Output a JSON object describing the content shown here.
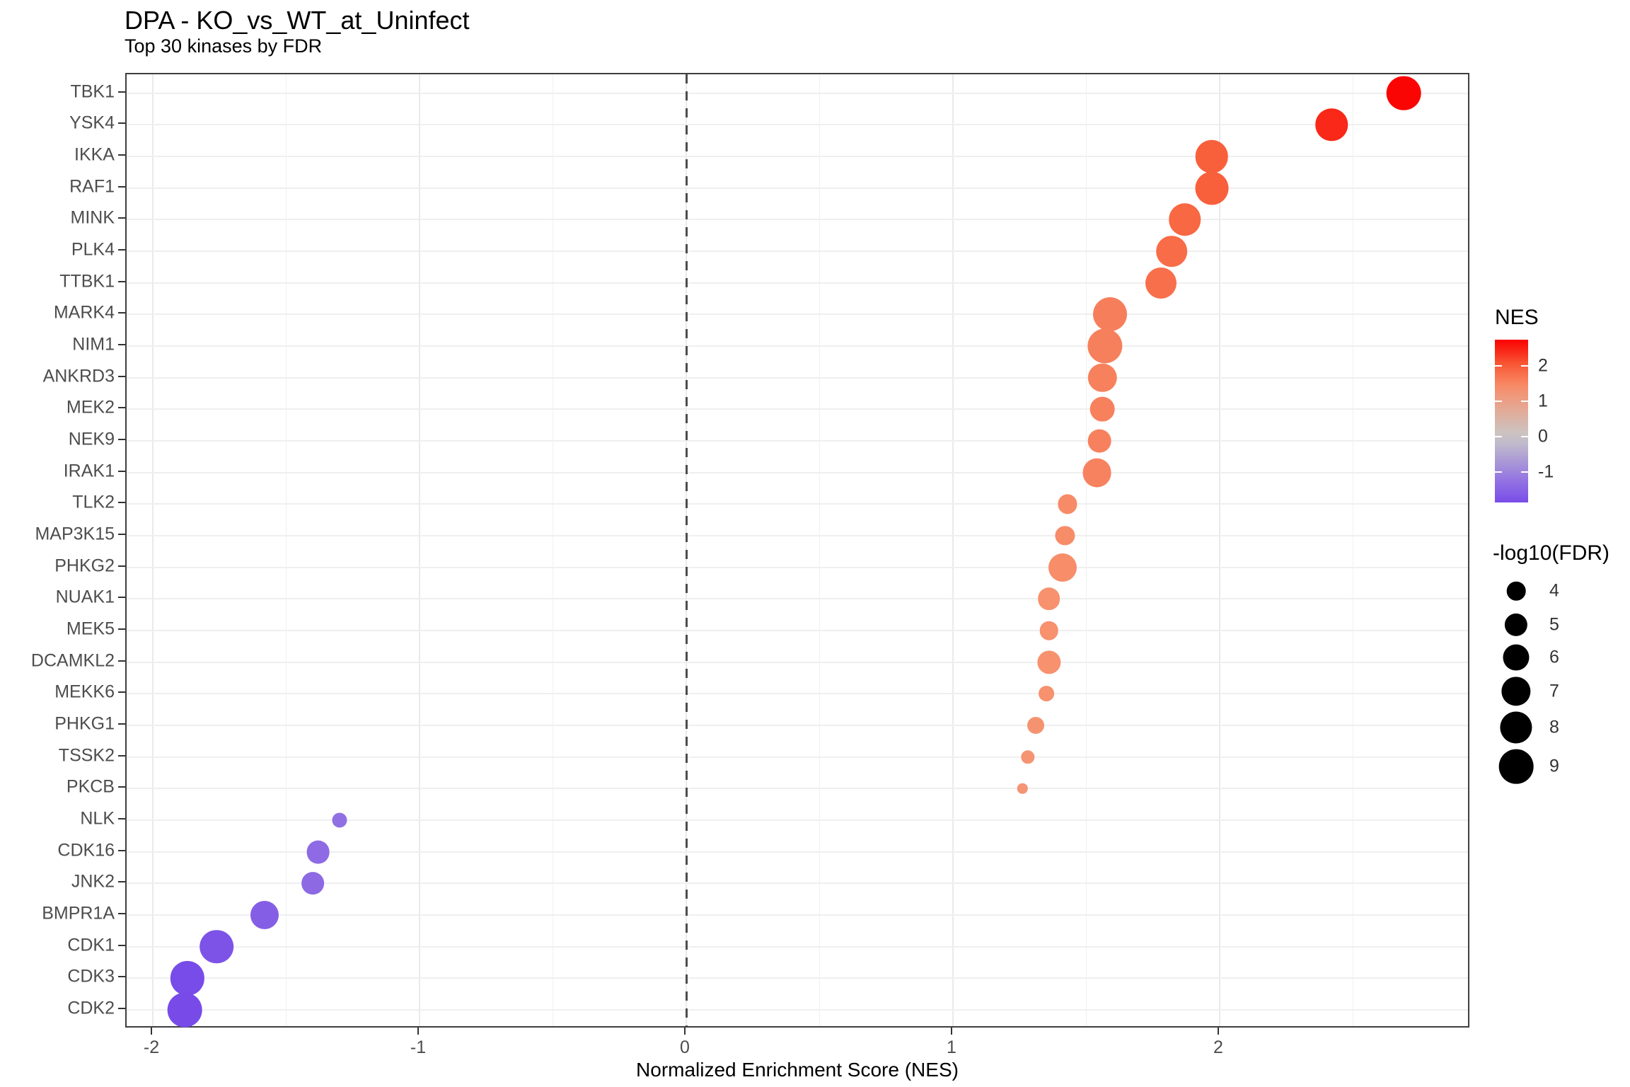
{
  "chart_data": {
    "type": "scatter",
    "title": "DPA - KO_vs_WT_at_Uninfect",
    "subtitle": "Top 30 kinases by FDR",
    "xlabel": "Normalized Enrichment Score (NES)",
    "x_ticks": [
      -2,
      -1,
      0,
      1,
      2
    ],
    "xlim": [
      -2.1,
      2.94
    ],
    "grid": true,
    "reference_line_x": 0,
    "legend_position": "right",
    "categories": [
      "TBK1",
      "YSK4",
      "IKKA",
      "RAF1",
      "MINK",
      "PLK4",
      "TTBK1",
      "MARK4",
      "NIM1",
      "ANKRD3",
      "MEK2",
      "NEK9",
      "IRAK1",
      "TLK2",
      "MAP3K15",
      "PHKG2",
      "NUAK1",
      "MEK5",
      "DCAMKL2",
      "MEKK6",
      "PHKG1",
      "TSSK2",
      "PKCB",
      "NLK",
      "CDK16",
      "JNK2",
      "BMPR1A",
      "CDK1",
      "CDK3",
      "CDK2"
    ],
    "points": [
      {
        "kinase": "TBK1",
        "nes": 2.69,
        "neg_log10_fdr": 9.0
      },
      {
        "kinase": "YSK4",
        "nes": 2.42,
        "neg_log10_fdr": 8.1
      },
      {
        "kinase": "IKKA",
        "nes": 1.97,
        "neg_log10_fdr": 8.4
      },
      {
        "kinase": "RAF1",
        "nes": 1.97,
        "neg_log10_fdr": 8.5
      },
      {
        "kinase": "MINK",
        "nes": 1.87,
        "neg_log10_fdr": 8.1
      },
      {
        "kinase": "PLK4",
        "nes": 1.82,
        "neg_log10_fdr": 7.6
      },
      {
        "kinase": "TTBK1",
        "nes": 1.78,
        "neg_log10_fdr": 7.7
      },
      {
        "kinase": "MARK4",
        "nes": 1.59,
        "neg_log10_fdr": 8.8
      },
      {
        "kinase": "NIM1",
        "nes": 1.57,
        "neg_log10_fdr": 9.2
      },
      {
        "kinase": "ANKRD3",
        "nes": 1.56,
        "neg_log10_fdr": 6.8
      },
      {
        "kinase": "MEK2",
        "nes": 1.56,
        "neg_log10_fdr": 5.5
      },
      {
        "kinase": "NEK9",
        "nes": 1.55,
        "neg_log10_fdr": 5.1
      },
      {
        "kinase": "IRAK1",
        "nes": 1.54,
        "neg_log10_fdr": 6.9
      },
      {
        "kinase": "TLK2",
        "nes": 1.43,
        "neg_log10_fdr": 4.1
      },
      {
        "kinase": "MAP3K15",
        "nes": 1.42,
        "neg_log10_fdr": 4.1
      },
      {
        "kinase": "PHKG2",
        "nes": 1.41,
        "neg_log10_fdr": 6.7
      },
      {
        "kinase": "NUAK1",
        "nes": 1.36,
        "neg_log10_fdr": 4.9
      },
      {
        "kinase": "MEK5",
        "nes": 1.36,
        "neg_log10_fdr": 4.0
      },
      {
        "kinase": "DCAMKL2",
        "nes": 1.36,
        "neg_log10_fdr": 5.2
      },
      {
        "kinase": "MEKK6",
        "nes": 1.35,
        "neg_log10_fdr": 3.3
      },
      {
        "kinase": "PHKG1",
        "nes": 1.31,
        "neg_log10_fdr": 3.6
      },
      {
        "kinase": "TSSK2",
        "nes": 1.28,
        "neg_log10_fdr": 3.0
      },
      {
        "kinase": "PKCB",
        "nes": 1.26,
        "neg_log10_fdr": 2.5
      },
      {
        "kinase": "NLK",
        "nes": -1.3,
        "neg_log10_fdr": 3.2
      },
      {
        "kinase": "CDK16",
        "nes": -1.38,
        "neg_log10_fdr": 5.1
      },
      {
        "kinase": "JNK2",
        "nes": -1.4,
        "neg_log10_fdr": 4.9
      },
      {
        "kinase": "BMPR1A",
        "nes": -1.58,
        "neg_log10_fdr": 6.7
      },
      {
        "kinase": "CDK1",
        "nes": -1.76,
        "neg_log10_fdr": 8.7
      },
      {
        "kinase": "CDK3",
        "nes": -1.87,
        "neg_log10_fdr": 8.9
      },
      {
        "kinase": "CDK2",
        "nes": -1.88,
        "neg_log10_fdr": 9.0
      }
    ],
    "color_legend": {
      "title": "NES",
      "ticks": [
        2,
        1,
        0,
        -1
      ],
      "domain": [
        -1.86,
        2.74
      ],
      "high_color": "#fa0202",
      "mid_color": "#c8c8c8",
      "low_color": "#5318ee"
    },
    "size_legend": {
      "title": "-log10(FDR)",
      "values": [
        4,
        5,
        6,
        7,
        8,
        9
      ]
    }
  }
}
